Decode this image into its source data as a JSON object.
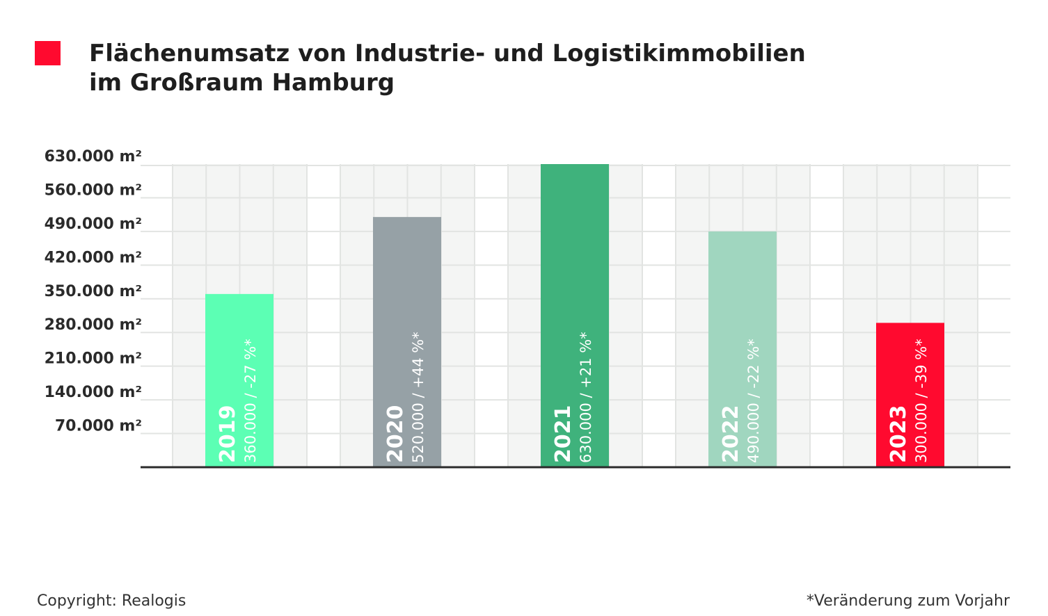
{
  "title": {
    "line1": "Flächenumsatz von Industrie- und Logistikimmobilien",
    "line2": "im Großraum Hamburg",
    "marker_color": "#ff0a2f"
  },
  "footer": {
    "copyright": "Copyright: Realogis",
    "note": "*Veränderung zum Vorjahr"
  },
  "chart_data": {
    "type": "bar",
    "categories": [
      "2019",
      "2020",
      "2021",
      "2022",
      "2023"
    ],
    "values": [
      360000,
      520000,
      630000,
      490000,
      300000
    ],
    "value_labels": [
      "360.000 / -27 %*",
      "520.000 / +44 %*",
      "630.000 / +21 %*",
      "490.000 / -22 %*",
      "300.000 / -39 %*"
    ],
    "colors": [
      "#5cffb4",
      "#96a1a6",
      "#3fb27c",
      "#a0d6bf",
      "#ff0a2f"
    ],
    "y_ticks": [
      70000,
      140000,
      210000,
      280000,
      350000,
      420000,
      490000,
      560000,
      630000
    ],
    "y_tick_labels": [
      "70.000 m²",
      "140.000 m²",
      "210.000 m²",
      "280.000 m²",
      "350.000 m²",
      "420.000 m²",
      "490.000 m²",
      "560.000 m²",
      "630.000 m²"
    ],
    "ylim": [
      0,
      630000
    ],
    "grid": true,
    "legend": "none"
  }
}
